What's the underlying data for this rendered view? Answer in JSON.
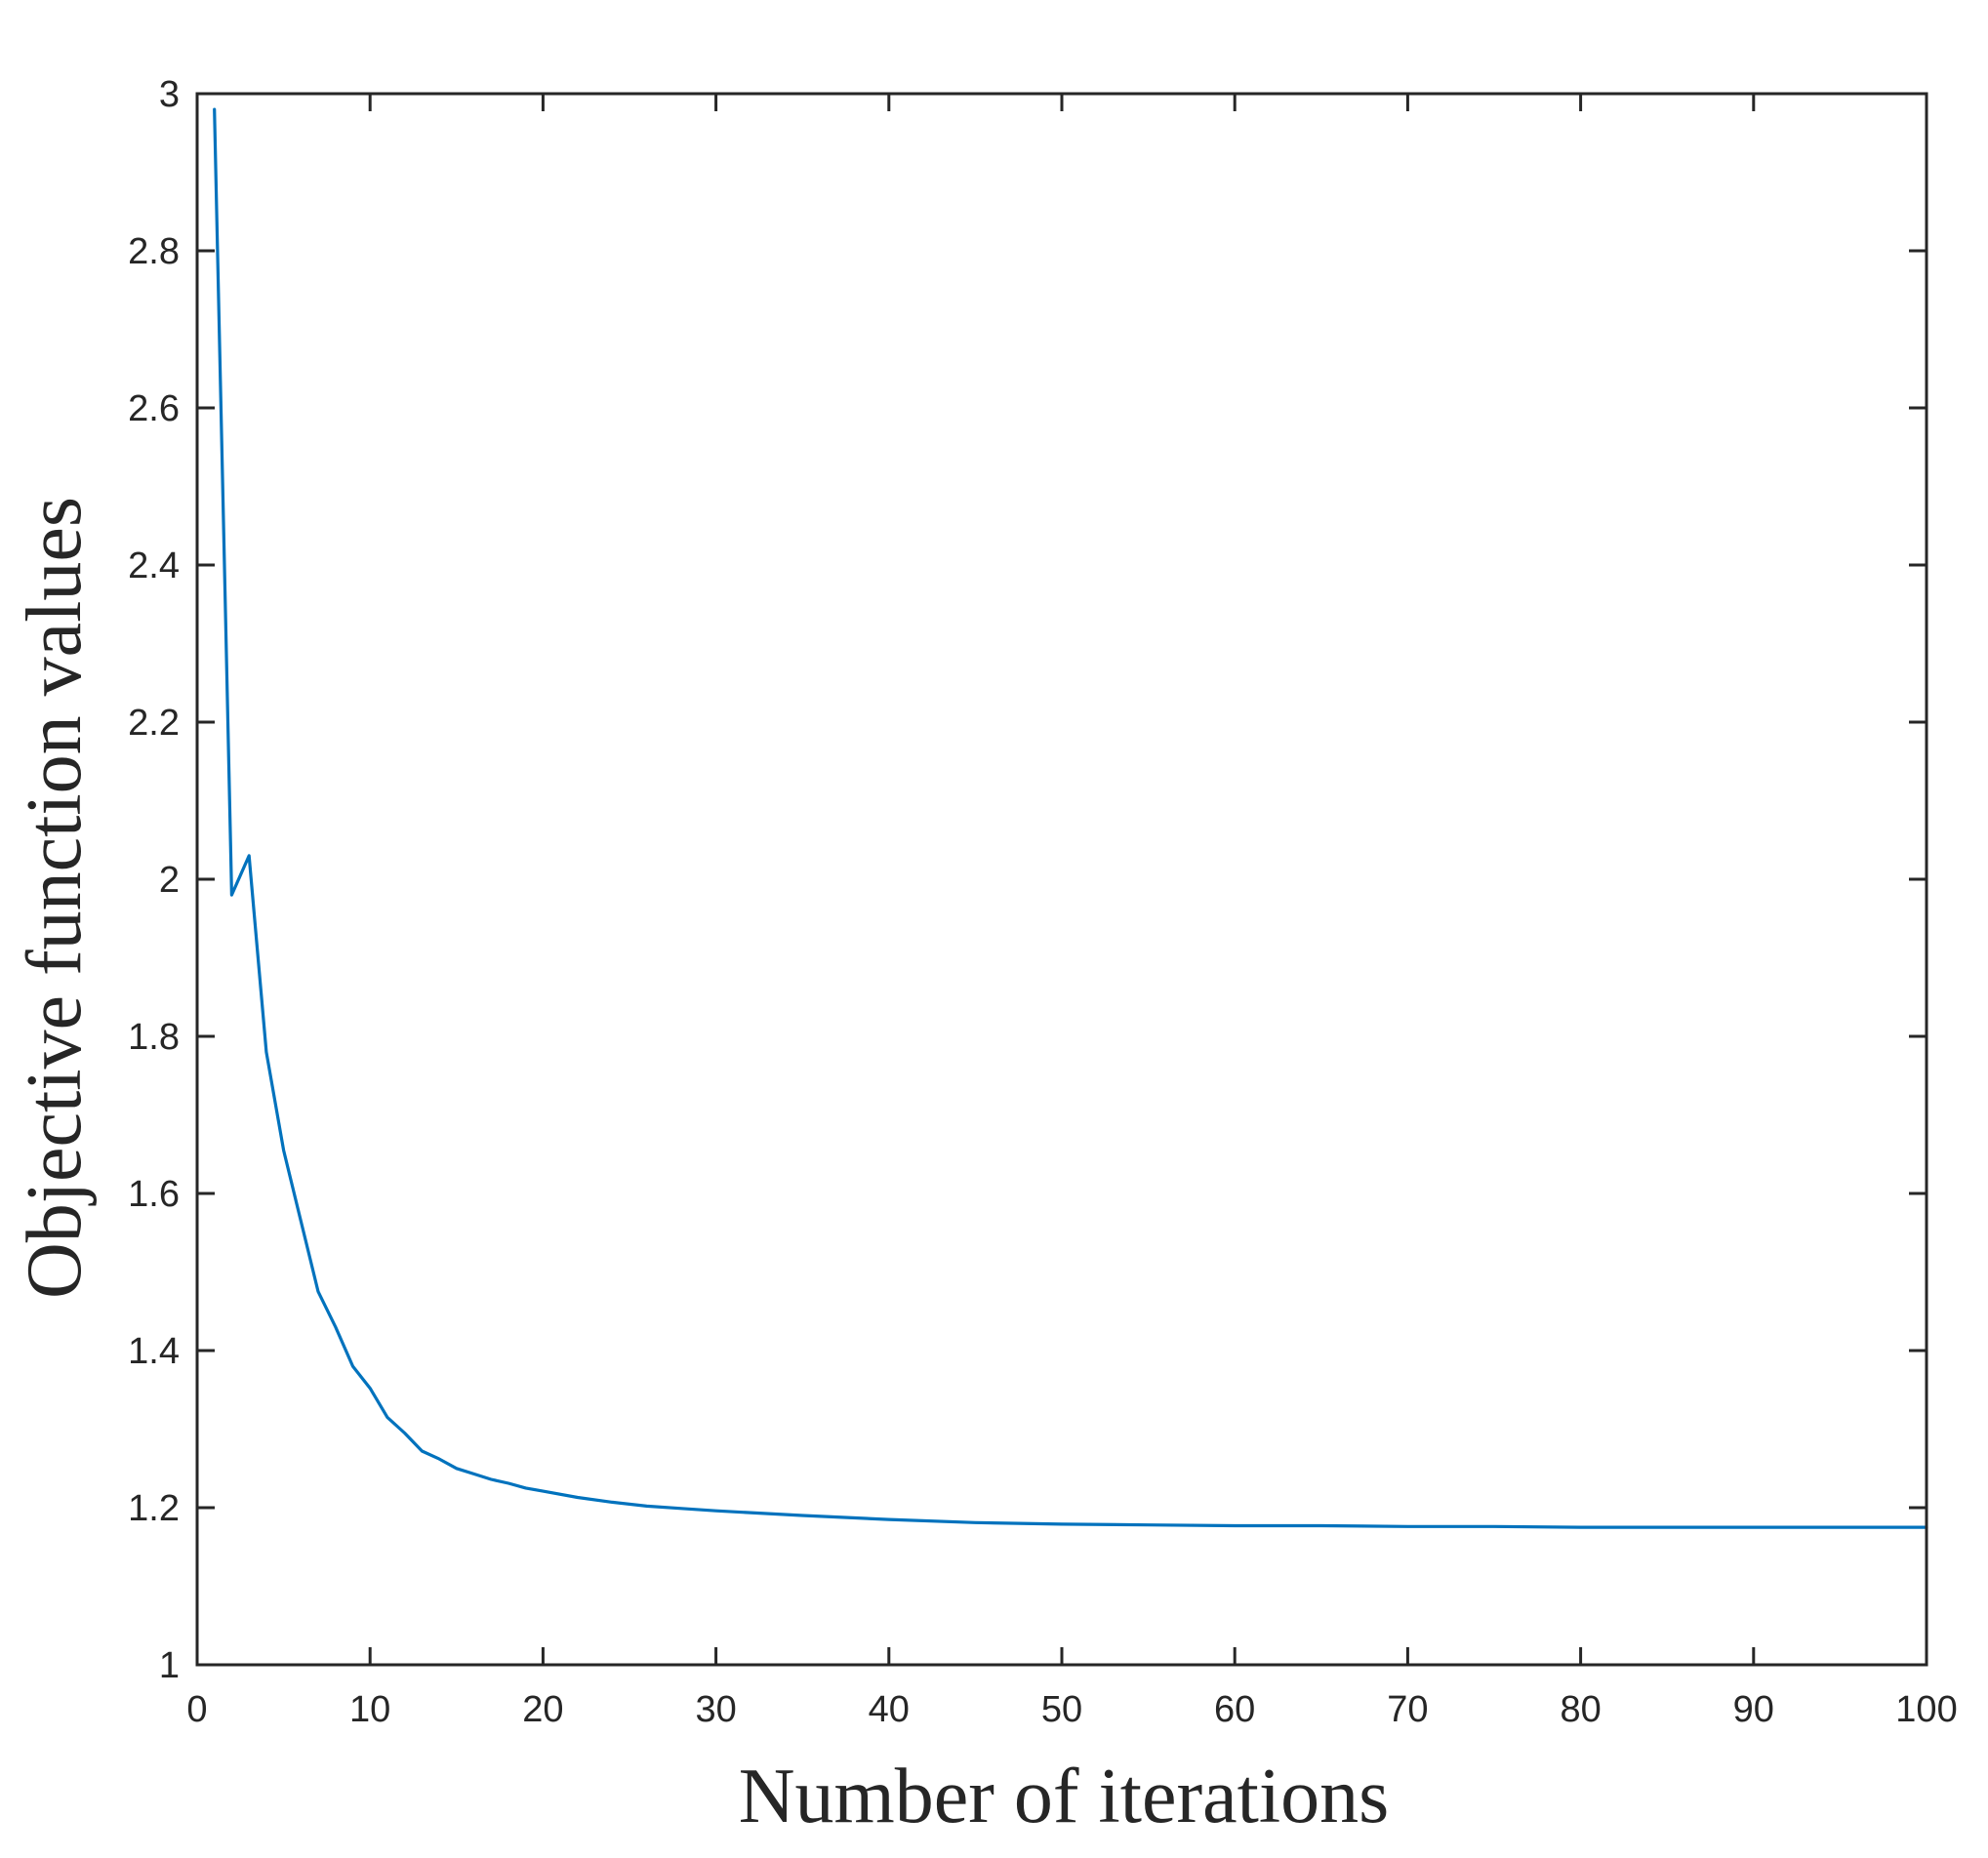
{
  "chart_data": {
    "type": "line",
    "title": "",
    "xlabel": "Number of iterations",
    "ylabel": "Objective function values",
    "xlim": [
      0,
      100
    ],
    "ylim": [
      1,
      3
    ],
    "xticks": [
      0,
      10,
      20,
      30,
      40,
      50,
      60,
      70,
      80,
      90,
      100
    ],
    "yticks": [
      1,
      1.2,
      1.4,
      1.6,
      1.8,
      2,
      2.2,
      2.4,
      2.6,
      2.8,
      3
    ],
    "xtick_labels": [
      "0",
      "10",
      "20",
      "30",
      "40",
      "50",
      "60",
      "70",
      "80",
      "90",
      "100"
    ],
    "ytick_labels": [
      "1",
      "1.2",
      "1.4",
      "1.6",
      "1.8",
      "2",
      "2.2",
      "2.4",
      "2.6",
      "2.8",
      "3"
    ],
    "grid": false,
    "legend": false,
    "series": [
      {
        "color": "#0072bd",
        "x": [
          1,
          2,
          3,
          4,
          5,
          6,
          7,
          8,
          9,
          10,
          11,
          12,
          13,
          14,
          15,
          16,
          17,
          18,
          19,
          20,
          22,
          24,
          26,
          28,
          30,
          35,
          40,
          45,
          50,
          55,
          60,
          65,
          70,
          75,
          80,
          85,
          90,
          95,
          100
        ],
        "y": [
          2.98,
          1.98,
          2.03,
          1.78,
          1.655,
          1.565,
          1.475,
          1.43,
          1.38,
          1.352,
          1.315,
          1.295,
          1.272,
          1.262,
          1.25,
          1.243,
          1.236,
          1.231,
          1.225,
          1.221,
          1.213,
          1.207,
          1.202,
          1.199,
          1.196,
          1.19,
          1.185,
          1.181,
          1.179,
          1.178,
          1.177,
          1.177,
          1.176,
          1.176,
          1.175,
          1.175,
          1.175,
          1.175,
          1.175
        ]
      }
    ]
  }
}
